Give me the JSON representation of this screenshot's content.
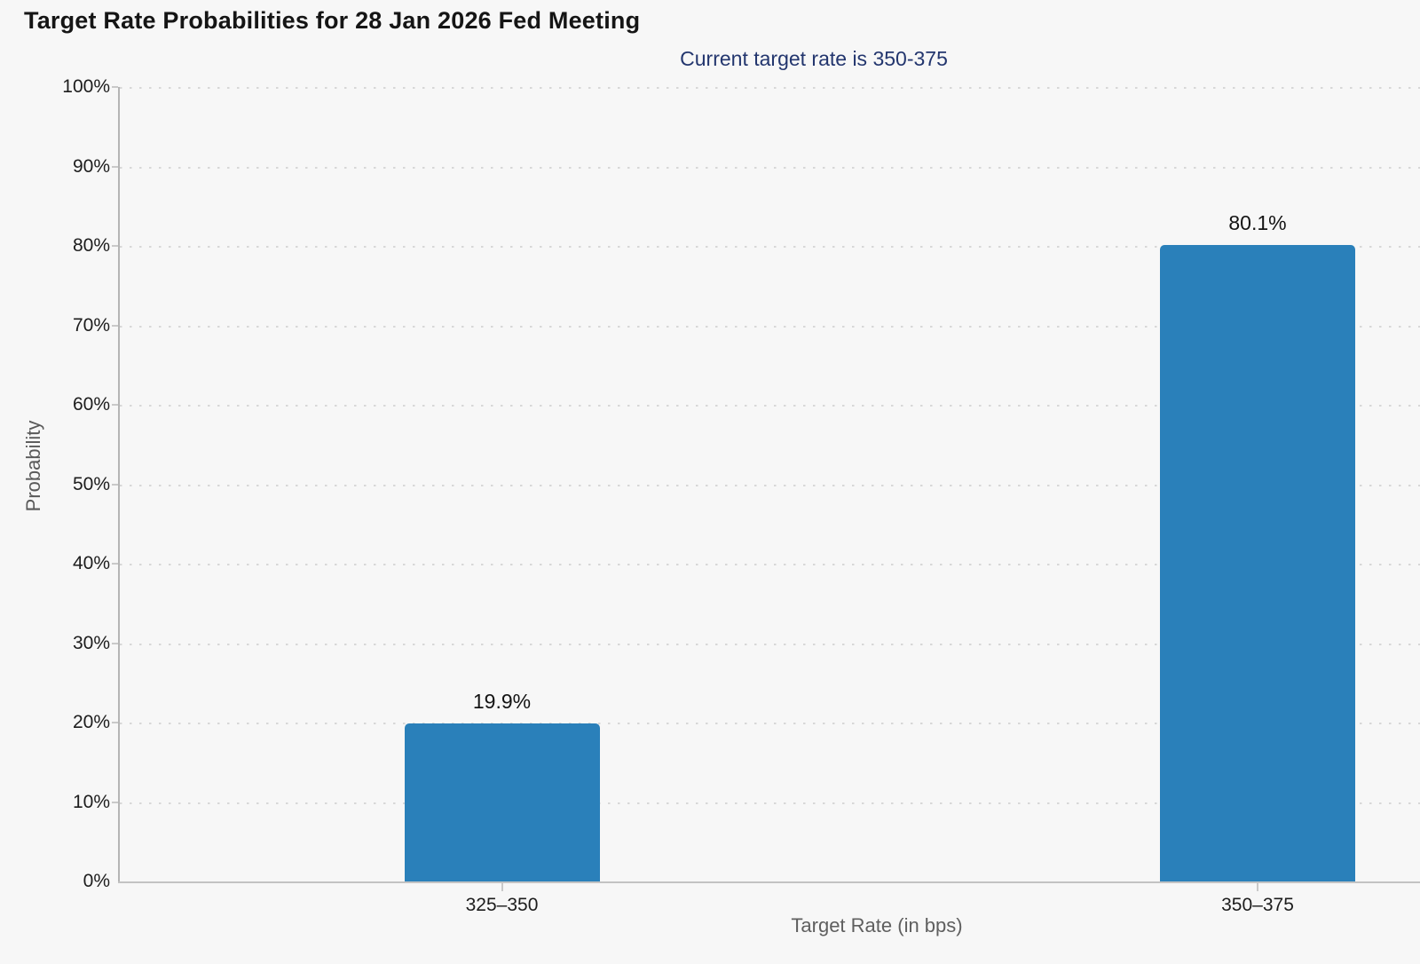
{
  "page": {
    "title": "Target Rate Probabilities for 28 Jan 2026 Fed Meeting",
    "subtitle": "Current target rate is 350-375"
  },
  "chart_data": {
    "type": "bar",
    "title": "Target Rate Probabilities for 28 Jan 2026 Fed Meeting",
    "subtitle": "Current target rate is 350-375",
    "categories": [
      "325–350",
      "350–375"
    ],
    "values": [
      19.9,
      80.1
    ],
    "value_labels": [
      "19.9%",
      "80.1%"
    ],
    "xlabel": "Target Rate (in bps)",
    "ylabel": "Probability",
    "ylim": [
      0,
      100
    ],
    "ytick_step": 10,
    "ytick_labels": [
      "0%",
      "10%",
      "20%",
      "30%",
      "40%",
      "50%",
      "60%",
      "70%",
      "80%",
      "90%",
      "100%"
    ],
    "grid": "dotted-horizontal",
    "legend": "none",
    "colors": {
      "bar": "#2a80ba",
      "background": "#f7f7f7",
      "subtitle_text": "#23366e",
      "axis_line": "#b5b5b5",
      "gridline": "#d7d7d7",
      "tick_label": "#1d1d1d",
      "axis_title": "#5f5f5f"
    }
  }
}
